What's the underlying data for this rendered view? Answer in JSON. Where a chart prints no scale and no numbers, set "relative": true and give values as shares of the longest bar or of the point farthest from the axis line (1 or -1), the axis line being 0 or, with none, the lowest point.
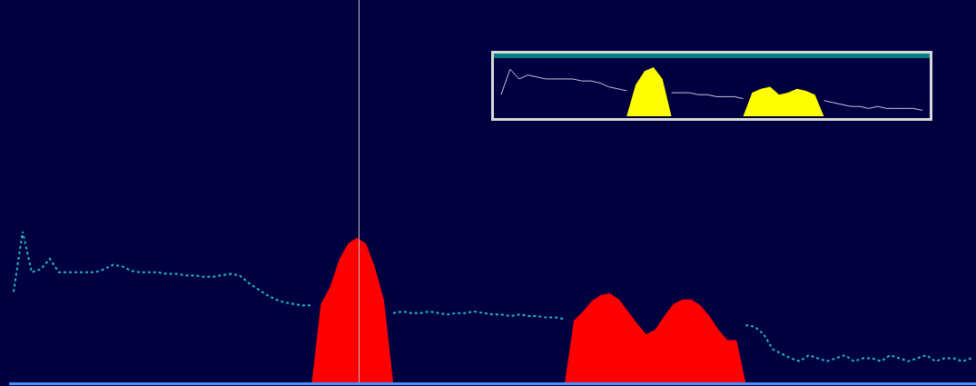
{
  "chart_data": [
    {
      "type": "area",
      "relative": true,
      "line_style": "dotted",
      "categories": [
        null,
        null,
        null,
        null,
        null,
        null,
        null,
        null,
        null,
        null,
        null,
        null,
        null,
        null,
        null,
        null,
        null,
        null,
        null,
        null,
        null,
        null,
        null,
        null,
        null,
        null,
        null,
        null,
        null,
        null,
        null,
        null,
        null,
        null,
        null,
        null,
        null,
        null,
        null,
        null,
        null,
        null,
        null,
        null,
        null,
        null,
        null,
        null,
        null,
        null,
        null,
        null,
        null,
        null,
        null,
        null,
        null,
        null,
        null,
        null,
        null,
        null,
        null,
        null,
        null,
        null,
        null,
        null,
        null,
        null,
        null,
        null,
        null,
        null,
        null,
        null,
        null,
        null,
        null,
        null,
        null,
        null,
        null,
        null,
        null,
        null,
        null,
        null,
        null,
        null,
        null,
        null,
        null,
        null,
        null,
        null,
        null,
        null,
        null,
        null,
        null,
        null,
        null,
        null,
        null,
        null,
        null
      ],
      "series": [
        {
          "type": "line",
          "color": "#20b8c8",
          "values": [
            0.6,
            1.0,
            0.73,
            0.75,
            0.82,
            0.73,
            0.73,
            0.73,
            0.73,
            0.73,
            0.75,
            0.78,
            0.77,
            0.74,
            0.73,
            0.73,
            0.73,
            0.72,
            0.72,
            0.71,
            0.71,
            0.7,
            0.7,
            0.71,
            0.72,
            0.71,
            0.66,
            0.62,
            0.58,
            0.55,
            0.53,
            0.52,
            0.51,
            0.51,
            null,
            null,
            null,
            null,
            null,
            null,
            null,
            null,
            0.46,
            0.47,
            0.46,
            0.46,
            0.47,
            0.46,
            0.45,
            0.46,
            0.46,
            0.47,
            0.46,
            0.45,
            0.45,
            0.44,
            0.45,
            0.44,
            0.44,
            0.43,
            0.43,
            0.42,
            null,
            null,
            null,
            null,
            null,
            null,
            null,
            null,
            null,
            null,
            null,
            null,
            null,
            null,
            null,
            null,
            null,
            null,
            null,
            0.38,
            0.37,
            0.32,
            0.22,
            0.19,
            0.16,
            0.14,
            0.18,
            0.16,
            0.14,
            0.16,
            0.18,
            0.14,
            0.16,
            0.16,
            0.14,
            0.18,
            0.16,
            0.14,
            0.16,
            0.18,
            0.14,
            0.16,
            0.16,
            0.14,
            0.16
          ]
        },
        {
          "type": "area",
          "color": "#ff0000",
          "values": [
            0,
            0,
            0,
            0,
            0,
            0,
            0,
            0,
            0,
            0,
            0,
            0,
            0,
            0,
            0,
            0,
            0,
            0,
            0,
            0,
            0,
            0,
            0,
            0,
            0,
            0,
            0,
            0,
            0,
            0,
            0,
            0,
            0,
            0,
            0.52,
            0.63,
            0.81,
            0.92,
            0.96,
            0.92,
            0.76,
            0.54,
            0,
            0,
            0,
            0,
            0,
            0,
            0,
            0,
            0,
            0,
            0,
            0,
            0,
            0,
            0,
            0,
            0,
            0,
            0,
            0,
            0.41,
            0.47,
            0.54,
            0.58,
            0.59,
            0.55,
            0.47,
            0.39,
            0.32,
            0.35,
            0.44,
            0.52,
            0.55,
            0.55,
            0.51,
            0.44,
            0.35,
            0.28,
            0.28,
            0,
            0,
            0,
            0,
            0,
            0,
            0,
            0,
            0,
            0,
            0,
            0,
            0,
            0,
            0,
            0,
            0,
            0,
            0,
            0,
            0,
            0,
            0,
            0,
            0,
            0
          ]
        }
      ]
    },
    {
      "type": "area",
      "relative": true,
      "categories": [
        null,
        null,
        null,
        null,
        null,
        null,
        null,
        null,
        null,
        null,
        null,
        null,
        null,
        null,
        null,
        null,
        null,
        null,
        null,
        null,
        null,
        null,
        null,
        null,
        null,
        null,
        null,
        null,
        null,
        null,
        null,
        null,
        null,
        null,
        null,
        null,
        null,
        null,
        null,
        null,
        null,
        null,
        null,
        null,
        null,
        null,
        null,
        null
      ],
      "series": [
        {
          "type": "line",
          "color": "#c8c8d8",
          "values": [
            0.44,
            0.96,
            0.76,
            0.84,
            0.8,
            0.76,
            0.76,
            0.76,
            0.76,
            0.72,
            0.72,
            0.68,
            0.6,
            0.56,
            0.52,
            null,
            null,
            null,
            null,
            0.48,
            0.48,
            0.48,
            0.44,
            0.44,
            0.4,
            0.4,
            0.4,
            0.36,
            null,
            null,
            null,
            null,
            null,
            null,
            null,
            null,
            0.32,
            0.28,
            0.24,
            0.2,
            0.2,
            0.16,
            0.2,
            0.16,
            0.16,
            0.16,
            0.16,
            0.12
          ]
        },
        {
          "type": "area",
          "color": "#ffff00",
          "values": [
            0,
            0,
            0,
            0,
            0,
            0,
            0,
            0,
            0,
            0,
            0,
            0,
            0,
            0,
            0,
            0.64,
            0.92,
            1.0,
            0.76,
            0,
            0,
            0,
            0,
            0,
            0,
            0,
            0,
            0,
            0.48,
            0.56,
            0.6,
            0.44,
            0.48,
            0.56,
            0.52,
            0.44,
            0,
            0,
            0,
            0,
            0,
            0,
            0,
            0,
            0,
            0,
            0,
            0
          ]
        }
      ]
    }
  ]
}
